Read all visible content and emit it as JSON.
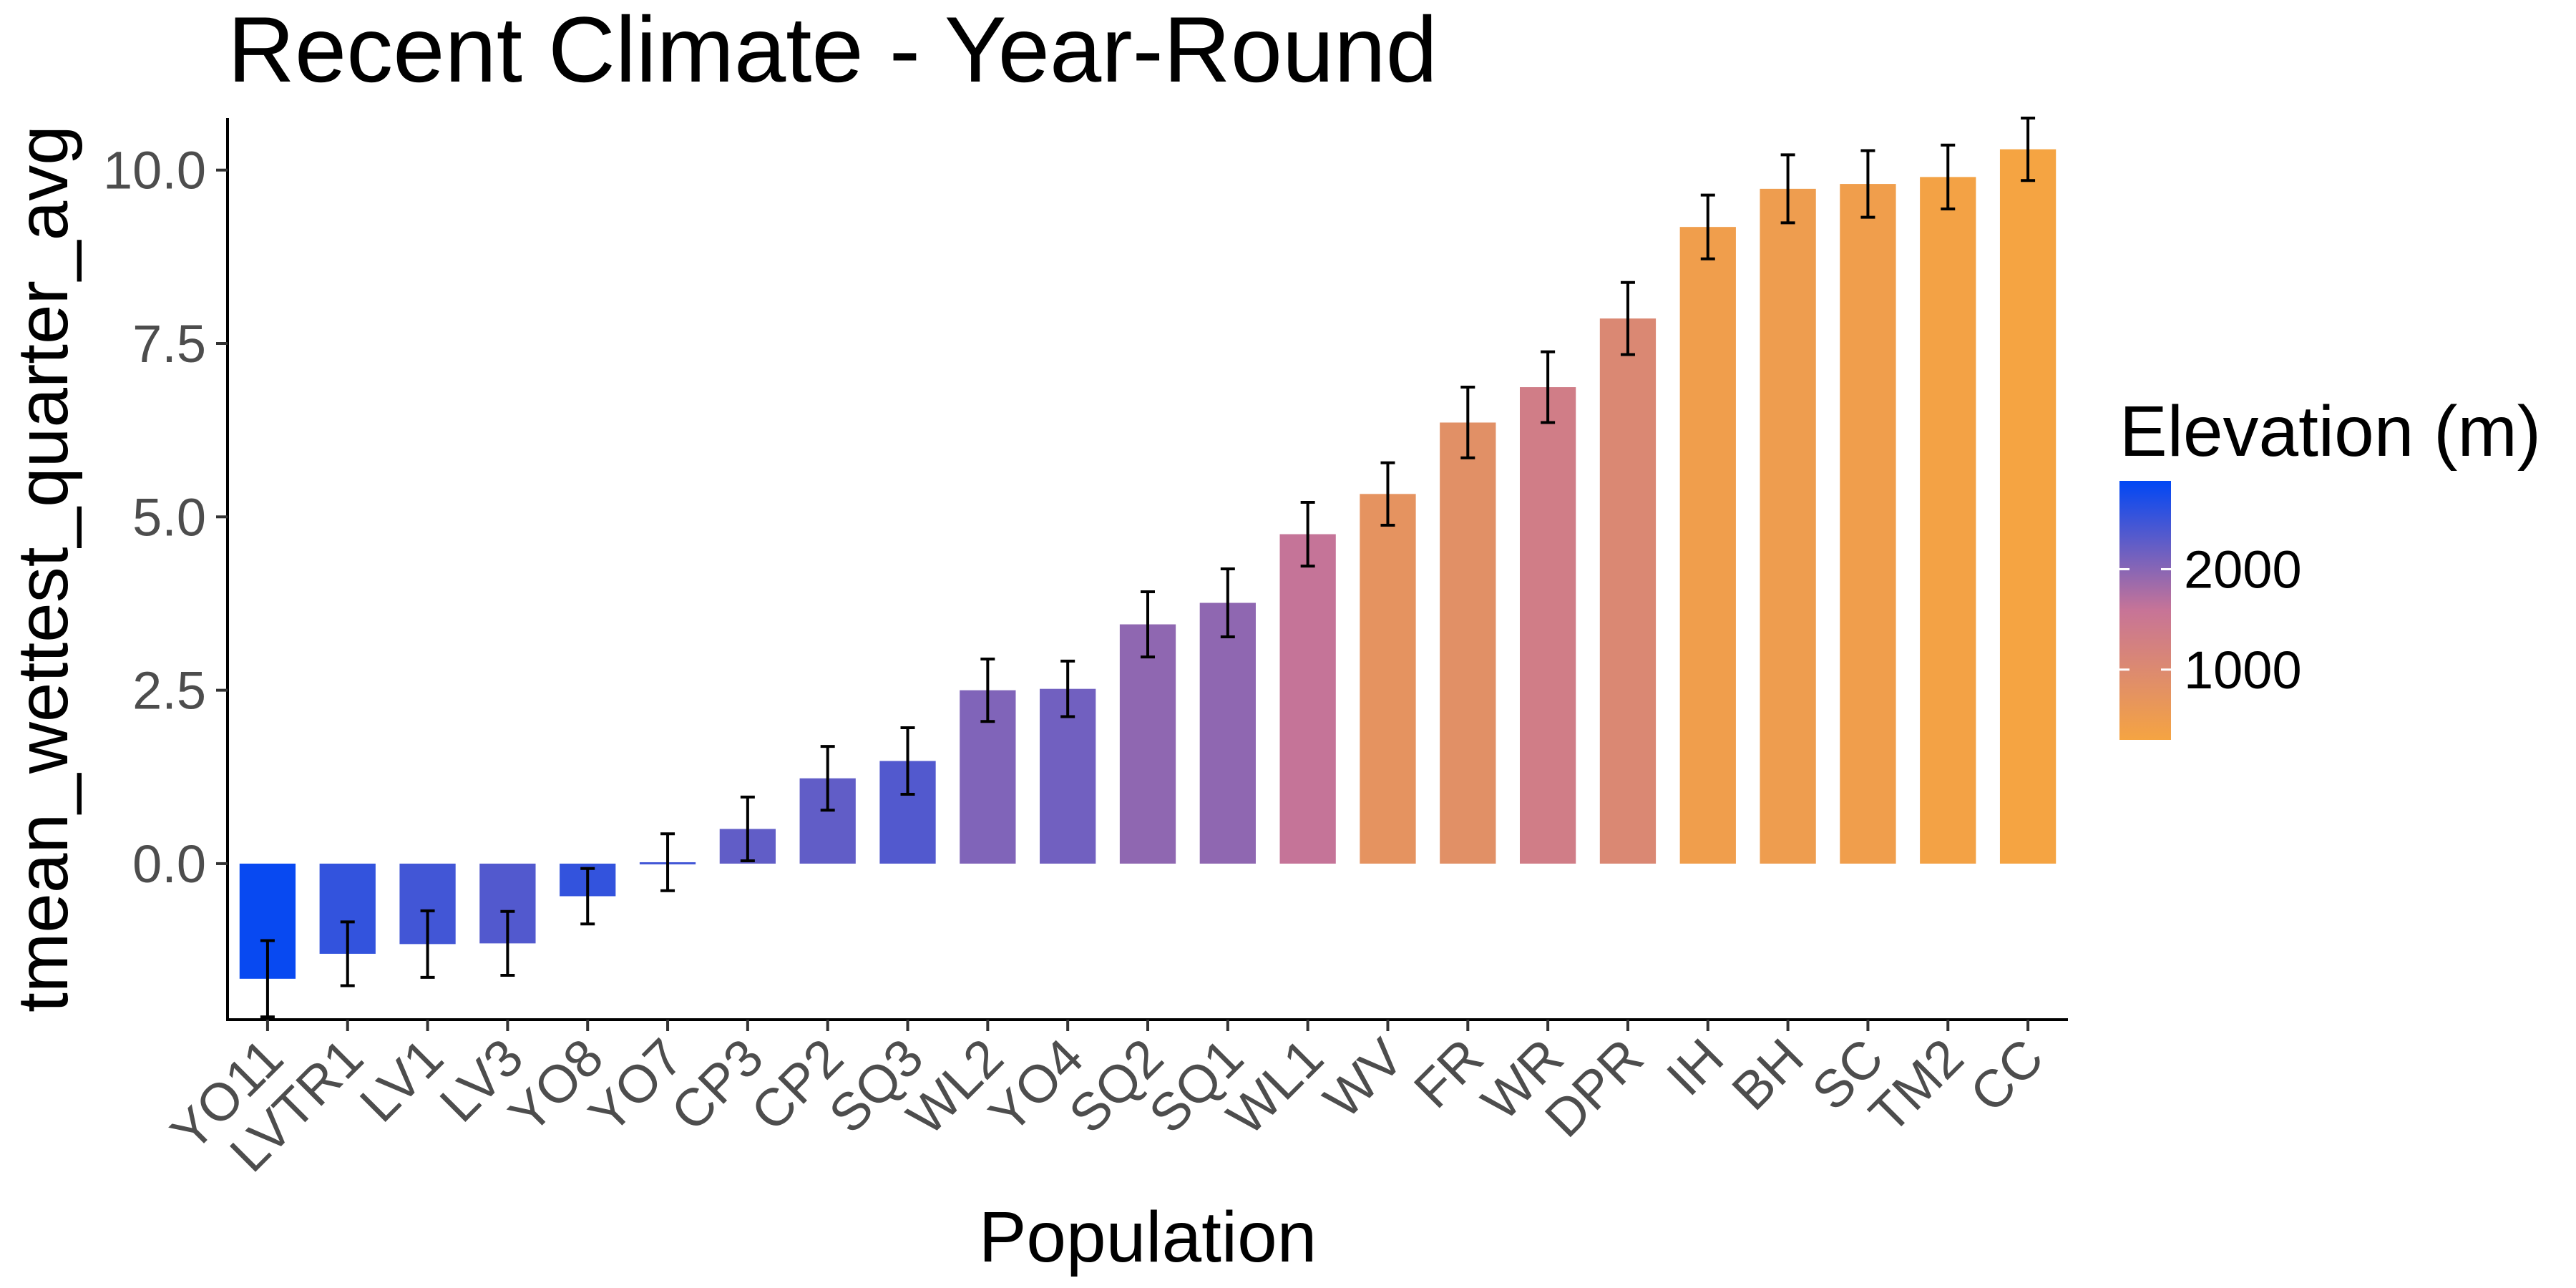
{
  "chart_data": {
    "type": "bar",
    "title": "Recent Climate - Year-Round",
    "xlabel": "Population",
    "ylabel": "tmean_wettest_quarter_avg",
    "ylim": [
      -2.25,
      10.75
    ],
    "yticks": [
      0.0,
      2.5,
      5.0,
      7.5,
      10.0
    ],
    "ytick_labels": [
      "0.0",
      "2.5",
      "5.0",
      "7.5",
      "10.0"
    ],
    "grid": false,
    "categories": [
      "YO11",
      "LVTR1",
      "LV1",
      "LV3",
      "YO8",
      "YO7",
      "CP3",
      "CP2",
      "SQ3",
      "WL2",
      "YO4",
      "SQ2",
      "SQ1",
      "WL1",
      "WV",
      "FR",
      "WR",
      "DPR",
      "IH",
      "BH",
      "SC",
      "TM2",
      "CC"
    ],
    "values": [
      -1.66,
      -1.3,
      -1.16,
      -1.15,
      -0.47,
      0.02,
      0.5,
      1.23,
      1.48,
      2.5,
      2.52,
      3.45,
      3.76,
      4.75,
      5.33,
      6.36,
      6.87,
      7.86,
      9.18,
      9.73,
      9.8,
      9.9,
      10.3
    ],
    "error": [
      0.55,
      0.46,
      0.48,
      0.46,
      0.4,
      0.41,
      0.46,
      0.46,
      0.48,
      0.45,
      0.4,
      0.47,
      0.49,
      0.46,
      0.45,
      0.51,
      0.51,
      0.52,
      0.46,
      0.49,
      0.48,
      0.46,
      0.45
    ],
    "elevation_m": [
      2830,
      2550,
      2450,
      2350,
      2550,
      2450,
      2250,
      2250,
      2350,
      2050,
      2150,
      1950,
      1950,
      1600,
      750,
      850,
      1350,
      1050,
      450,
      500,
      450,
      350,
      300
    ],
    "legend": {
      "title": "Elevation (m)",
      "position": "right",
      "ticks": [
        2000,
        1000
      ],
      "tick_labels": [
        "2000",
        "1000"
      ],
      "range": [
        300,
        2880
      ],
      "color_low": "#f5a442",
      "color_mid": "#c77497",
      "color_high": "#0047f5"
    },
    "colors": {
      "error_bar": "#000000",
      "axis": "#000000",
      "tick_label": "#4d4d4d"
    }
  }
}
